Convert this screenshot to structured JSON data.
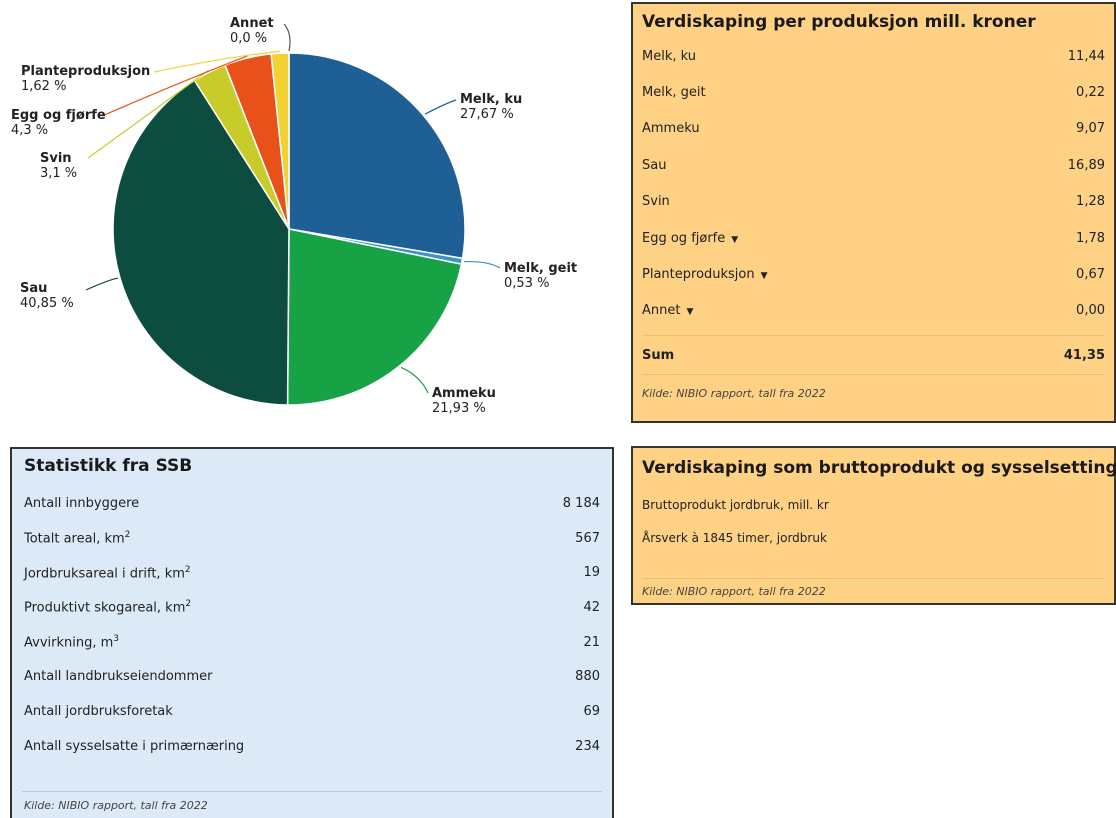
{
  "chart_data": {
    "type": "pie",
    "slices": [
      {
        "name": "Melk, ku",
        "value": 27.67,
        "label_pct": "27,67 %",
        "color": "#1e5f96"
      },
      {
        "name": "Melk, geit",
        "value": 0.53,
        "label_pct": "0,53 %",
        "color": "#3d93c8"
      },
      {
        "name": "Ammeku",
        "value": 21.93,
        "label_pct": "21,93 %",
        "color": "#18a246"
      },
      {
        "name": "Sau",
        "value": 40.85,
        "label_pct": "40,85 %",
        "color": "#0d4d3f"
      },
      {
        "name": "Svin",
        "value": 3.1,
        "label_pct": "3,1 %",
        "color": "#c8cc2a"
      },
      {
        "name": "Egg og fjørfe",
        "value": 4.3,
        "label_pct": "4,3 %",
        "color": "#e8521a"
      },
      {
        "name": "Planteproduksjon",
        "value": 1.62,
        "label_pct": "1,62 %",
        "color": "#f3d132"
      },
      {
        "name": "Annet",
        "value": 0.0,
        "label_pct": "0,0 %",
        "color": "#b8b8b8"
      }
    ]
  },
  "value_panel": {
    "title": "Verdiskaping per produksjon mill. kroner",
    "rows": [
      {
        "label": "Melk, ku",
        "value": "11,44",
        "caret": ""
      },
      {
        "label": "Melk, geit",
        "value": "0,22",
        "caret": ""
      },
      {
        "label": "Ammeku",
        "value": "9,07",
        "caret": ""
      },
      {
        "label": "Sau",
        "value": "16,89",
        "caret": ""
      },
      {
        "label": "Svin",
        "value": "1,28",
        "caret": ""
      },
      {
        "label": "Egg og fjørfe",
        "value": "1,78",
        "caret": "▼"
      },
      {
        "label": "Planteproduksjon",
        "value": "0,67",
        "caret": "▼"
      },
      {
        "label": "Annet",
        "value": "0,00",
        "caret": "▼"
      }
    ],
    "sum_label": "Sum",
    "sum_value": "41,35",
    "source": "Kilde: NIBIO rapport, tall fra 2022"
  },
  "ssb_panel": {
    "title": "Statistikk fra SSB",
    "rows": [
      {
        "label": "Antall innbyggere",
        "sup": "",
        "value": "8 184"
      },
      {
        "label": "Totalt areal, km",
        "sup": "2",
        "value": "567"
      },
      {
        "label": "Jordbruksareal i drift, km",
        "sup": "2",
        "value": "19"
      },
      {
        "label": "Produktivt skogareal, km",
        "sup": "2",
        "value": "42"
      },
      {
        "label": "Avvirkning, m",
        "sup": "3",
        "value": "21"
      },
      {
        "label": "Antall landbrukseiendommer",
        "sup": "",
        "value": "880"
      },
      {
        "label": "Antall jordbruksforetak",
        "sup": "",
        "value": "69"
      },
      {
        "label": "Antall sysselsatte i primærnæring",
        "sup": "",
        "value": "234"
      }
    ],
    "source": "Kilde: NIBIO rapport, tall fra 2022"
  },
  "brutto_panel": {
    "title": "Verdiskaping som bruttoprodukt og sysselsetting",
    "rows": [
      {
        "label": "Bruttoprodukt jordbruk, mill. kr"
      },
      {
        "label": "Årsverk à 1845 timer, jordbruk"
      }
    ],
    "source": "Kilde: NIBIO rapport, tall fra 2022"
  }
}
